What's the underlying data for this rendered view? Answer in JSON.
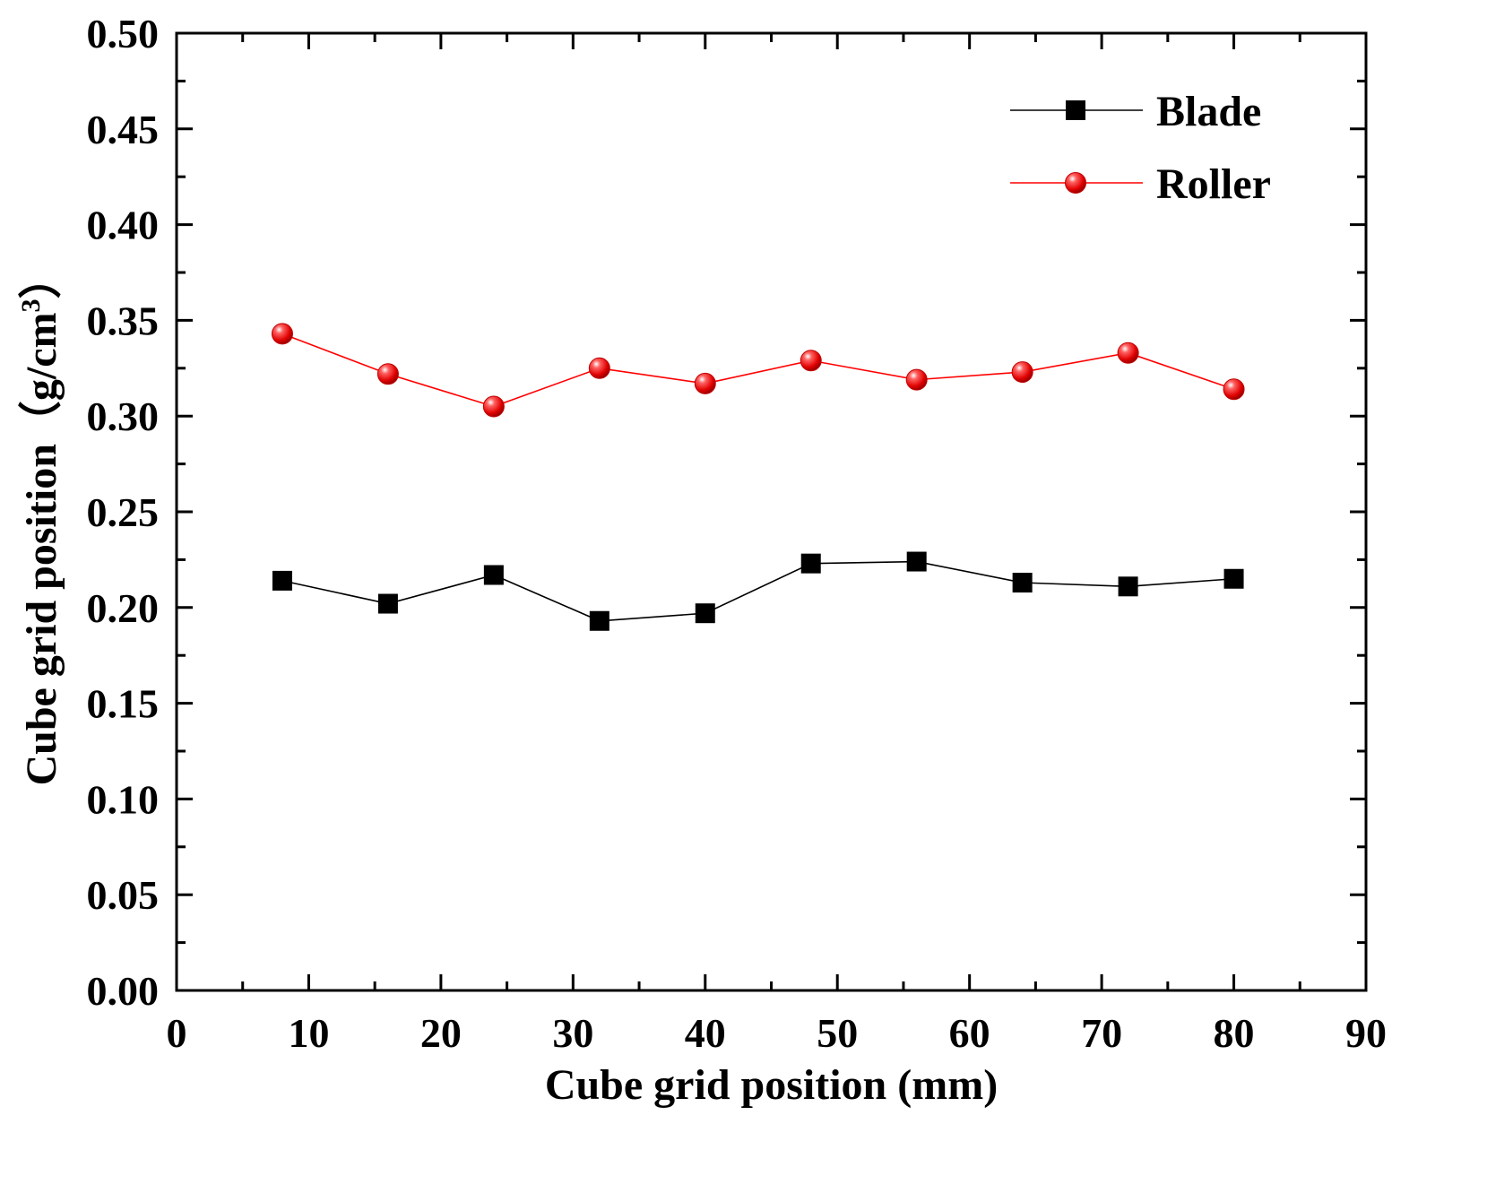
{
  "chart_data": {
    "type": "line",
    "title": "",
    "xlabel": "Cube grid position (mm)",
    "ylabel_main": "Cube grid position（g/cm",
    "ylabel_sup": "3",
    "ylabel_close": "）",
    "xlim": [
      0,
      90
    ],
    "ylim": [
      0,
      0.5
    ],
    "x_major_ticks": [
      0,
      10,
      20,
      30,
      40,
      50,
      60,
      70,
      80,
      90
    ],
    "x_tick_labels": [
      "0",
      "10",
      "20",
      "30",
      "40",
      "50",
      "60",
      "70",
      "80",
      "90"
    ],
    "y_major_ticks": [
      0,
      0.05,
      0.1,
      0.15,
      0.2,
      0.25,
      0.3,
      0.35,
      0.4,
      0.45,
      0.5
    ],
    "y_tick_labels": [
      "0.00",
      "0.05",
      "0.10",
      "0.15",
      "0.20",
      "0.25",
      "0.30",
      "0.35",
      "0.40",
      "0.45",
      "0.50"
    ],
    "grid": false,
    "legend_position": "top-right",
    "x": [
      8,
      16,
      24,
      32,
      40,
      48,
      56,
      64,
      72,
      80
    ],
    "series": [
      {
        "name": "Blade",
        "marker": "square",
        "color": "#000000",
        "values": [
          0.214,
          0.202,
          0.217,
          0.193,
          0.197,
          0.223,
          0.224,
          0.213,
          0.211,
          0.215
        ]
      },
      {
        "name": "Roller",
        "marker": "circle",
        "color": "#ff0000",
        "values": [
          0.343,
          0.322,
          0.305,
          0.325,
          0.317,
          0.329,
          0.319,
          0.323,
          0.333,
          0.314
        ]
      }
    ]
  }
}
